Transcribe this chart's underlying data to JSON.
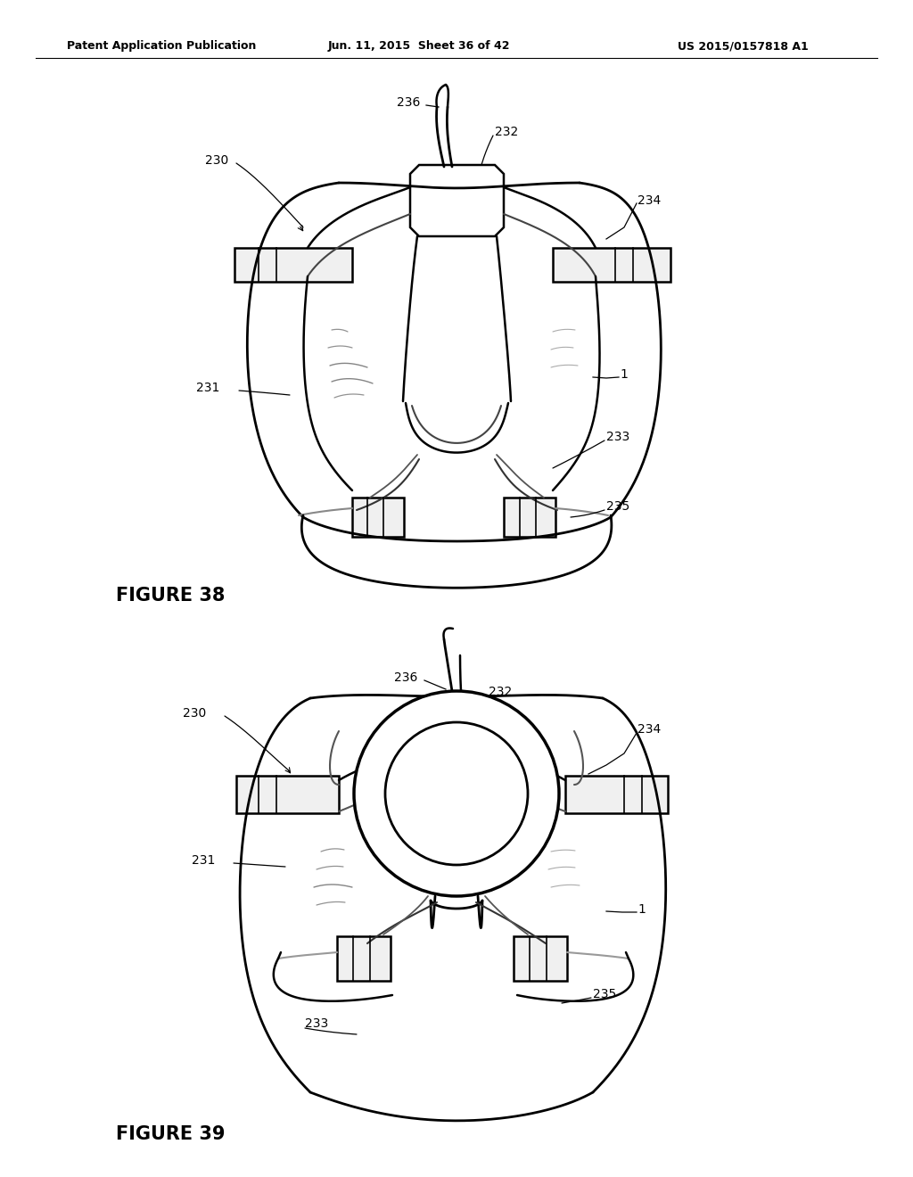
{
  "bg_color": "#ffffff",
  "header_left": "Patent Application Publication",
  "header_mid": "Jun. 11, 2015  Sheet 36 of 42",
  "header_right": "US 2015/0157818 A1",
  "fig38_label": "FIGURE 38",
  "fig39_label": "FIGURE 39",
  "font_size_header": 9,
  "font_size_label": 10,
  "font_size_fig": 15
}
